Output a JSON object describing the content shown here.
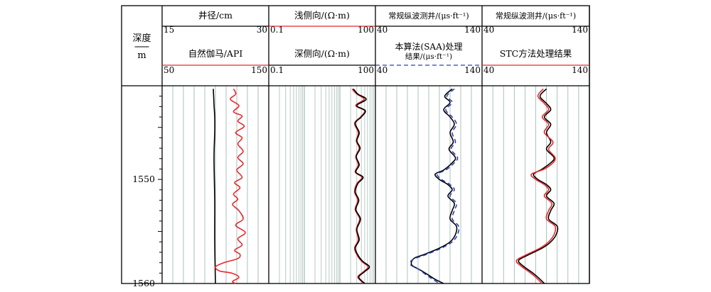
{
  "chart_data": {
    "type": "line",
    "depth_track": {
      "title": "深度",
      "unit": "m",
      "ylim": [
        1541,
        1560
      ],
      "ticks": [
        1550,
        1560
      ],
      "tick_labels": [
        "1550",
        "1560"
      ]
    },
    "tracks": [
      {
        "curves": [
          {
            "name": "井径/cm",
            "scale_min": "15",
            "scale_max": "30",
            "xlim": [
              15,
              30
            ],
            "color": "#000000",
            "dash": "none",
            "points": [
              [
                22.2,
                1541.3
              ],
              [
                22.3,
                1542.8
              ],
              [
                22.4,
                1544.0
              ],
              [
                22.4,
                1545.5
              ],
              [
                22.3,
                1548.0
              ],
              [
                22.4,
                1552.0
              ],
              [
                22.4,
                1556.0
              ],
              [
                22.5,
                1560.0
              ]
            ]
          },
          {
            "name": "自然伽马/API",
            "scale_min": "50",
            "scale_max": "150",
            "xlim": [
              50,
              150
            ],
            "color": "#e8282c",
            "dash": "none",
            "points": [
              [
                117,
                1541.3
              ],
              [
                119,
                1541.8
              ],
              [
                114,
                1542.3
              ],
              [
                122,
                1542.9
              ],
              [
                117,
                1543.5
              ],
              [
                125,
                1543.9
              ],
              [
                121,
                1544.4
              ],
              [
                127,
                1544.9
              ],
              [
                119,
                1545.5
              ],
              [
                125,
                1546.0
              ],
              [
                121,
                1546.6
              ],
              [
                126,
                1547.3
              ],
              [
                121,
                1547.9
              ],
              [
                126,
                1548.5
              ],
              [
                120,
                1549.1
              ],
              [
                125,
                1549.8
              ],
              [
                118,
                1550.3
              ],
              [
                123,
                1550.8
              ],
              [
                117,
                1551.4
              ],
              [
                121,
                1551.9
              ],
              [
                116,
                1552.4
              ],
              [
                122,
                1553.0
              ],
              [
                126,
                1553.8
              ],
              [
                119,
                1554.4
              ],
              [
                128,
                1555.1
              ],
              [
                121,
                1555.7
              ],
              [
                125,
                1556.3
              ],
              [
                118,
                1556.8
              ],
              [
                123,
                1557.2
              ],
              [
                121,
                1557.6
              ],
              [
                108,
                1558.0
              ],
              [
                100,
                1558.4
              ],
              [
                104,
                1558.8
              ],
              [
                115,
                1559.0
              ],
              [
                122,
                1559.4
              ],
              [
                116,
                1559.8
              ],
              [
                119,
                1560.0
              ]
            ]
          }
        ]
      },
      {
        "curves": [
          {
            "name": "浅侧向/(Ω·m)",
            "scale_min": "0.1",
            "scale_max": "100",
            "xlim": [
              0.1,
              100
            ],
            "log": true,
            "color": "#e8282c",
            "dash": "none",
            "points": [
              [
                22,
                1541.3
              ],
              [
                30,
                1541.8
              ],
              [
                48,
                1542.3
              ],
              [
                28,
                1542.9
              ],
              [
                50,
                1543.4
              ],
              [
                38,
                1544.0
              ],
              [
                26,
                1544.6
              ],
              [
                33,
                1545.5
              ],
              [
                29,
                1546.3
              ],
              [
                35,
                1547.0
              ],
              [
                28,
                1547.8
              ],
              [
                33,
                1548.6
              ],
              [
                27,
                1549.3
              ],
              [
                42,
                1549.8
              ],
              [
                30,
                1550.4
              ],
              [
                26,
                1551.2
              ],
              [
                32,
                1552.0
              ],
              [
                27,
                1552.9
              ],
              [
                36,
                1553.8
              ],
              [
                29,
                1554.8
              ],
              [
                33,
                1555.8
              ],
              [
                26,
                1556.6
              ],
              [
                32,
                1557.4
              ],
              [
                42,
                1557.9
              ],
              [
                62,
                1558.4
              ],
              [
                45,
                1558.9
              ],
              [
                32,
                1559.4
              ],
              [
                48,
                1560.0
              ]
            ]
          },
          {
            "name": "深侧向/(Ω·m)",
            "scale_min": "0.1",
            "scale_max": "100",
            "xlim": [
              0.1,
              100
            ],
            "log": true,
            "color": "#000000",
            "dash": "none",
            "points": [
              [
                24,
                1541.3
              ],
              [
                32,
                1541.8
              ],
              [
                55,
                1542.3
              ],
              [
                30,
                1542.9
              ],
              [
                52,
                1543.4
              ],
              [
                40,
                1544.0
              ],
              [
                27,
                1544.6
              ],
              [
                35,
                1545.5
              ],
              [
                30,
                1546.3
              ],
              [
                37,
                1547.0
              ],
              [
                29,
                1547.8
              ],
              [
                35,
                1548.6
              ],
              [
                28,
                1549.3
              ],
              [
                45,
                1549.8
              ],
              [
                32,
                1550.4
              ],
              [
                27,
                1551.2
              ],
              [
                34,
                1552.0
              ],
              [
                28,
                1552.9
              ],
              [
                38,
                1553.8
              ],
              [
                30,
                1554.8
              ],
              [
                35,
                1555.8
              ],
              [
                27,
                1556.6
              ],
              [
                34,
                1557.4
              ],
              [
                45,
                1557.9
              ],
              [
                68,
                1558.4
              ],
              [
                48,
                1558.9
              ],
              [
                34,
                1559.4
              ],
              [
                50,
                1560.0
              ]
            ]
          }
        ]
      },
      {
        "curves": [
          {
            "name": "常规纵波测井/(μs·ft⁻¹)",
            "scale_min": "40",
            "scale_max": "140",
            "xlim": [
              40,
              140
            ],
            "color": "#000000",
            "dash": "none",
            "points": [
              [
                112,
                1541.3
              ],
              [
                105,
                1542.0
              ],
              [
                110,
                1542.6
              ],
              [
                104,
                1543.3
              ],
              [
                110,
                1544.0
              ],
              [
                114,
                1544.7
              ],
              [
                110,
                1545.5
              ],
              [
                113,
                1546.4
              ],
              [
                109,
                1547.1
              ],
              [
                115,
                1547.9
              ],
              [
                112,
                1548.4
              ],
              [
                104,
                1549.1
              ],
              [
                96,
                1549.5
              ],
              [
                100,
                1550.0
              ],
              [
                108,
                1550.5
              ],
              [
                112,
                1551.0
              ],
              [
                108,
                1551.6
              ],
              [
                114,
                1552.3
              ],
              [
                112,
                1553.0
              ],
              [
                110,
                1553.8
              ],
              [
                116,
                1554.5
              ],
              [
                115,
                1555.3
              ],
              [
                110,
                1556.0
              ],
              [
                100,
                1556.6
              ],
              [
                86,
                1557.2
              ],
              [
                76,
                1557.6
              ],
              [
                74,
                1558.2
              ],
              [
                82,
                1558.7
              ],
              [
                90,
                1559.2
              ],
              [
                96,
                1559.6
              ],
              [
                104,
                1560.0
              ]
            ]
          },
          {
            "name": "本算法(SAA)处理结果/(μs·ft⁻¹)",
            "scale_min": "40",
            "scale_max": "140",
            "xlim": [
              40,
              140
            ],
            "color": "#2a3fb8",
            "dash": "6,4",
            "points": [
              [
                114,
                1541.3
              ],
              [
                107,
                1542.0
              ],
              [
                112,
                1542.6
              ],
              [
                106,
                1543.3
              ],
              [
                112,
                1544.0
              ],
              [
                116,
                1544.7
              ],
              [
                112,
                1545.5
              ],
              [
                115,
                1546.4
              ],
              [
                111,
                1547.1
              ],
              [
                117,
                1547.9
              ],
              [
                114,
                1548.4
              ],
              [
                106,
                1549.1
              ],
              [
                98,
                1549.5
              ],
              [
                102,
                1550.0
              ],
              [
                110,
                1550.5
              ],
              [
                114,
                1551.0
              ],
              [
                110,
                1551.6
              ],
              [
                116,
                1552.3
              ],
              [
                114,
                1553.0
              ],
              [
                112,
                1553.8
              ],
              [
                118,
                1554.5
              ],
              [
                117,
                1555.3
              ],
              [
                112,
                1556.0
              ],
              [
                102,
                1556.6
              ],
              [
                88,
                1557.2
              ],
              [
                75,
                1557.7
              ],
              [
                73,
                1558.2
              ],
              [
                80,
                1558.6
              ],
              [
                88,
                1559.2
              ],
              [
                94,
                1559.6
              ],
              [
                100,
                1560.0
              ]
            ]
          }
        ]
      },
      {
        "curves": [
          {
            "name": "常规纵波测井/(μs·ft⁻¹)",
            "scale_min": "40",
            "scale_max": "140",
            "xlim": [
              40,
              140
            ],
            "color": "#000000",
            "dash": "none",
            "points": [
              [
                100,
                1541.3
              ],
              [
                94,
                1542.0
              ],
              [
                100,
                1542.7
              ],
              [
                104,
                1543.3
              ],
              [
                98,
                1544.0
              ],
              [
                104,
                1544.7
              ],
              [
                100,
                1545.5
              ],
              [
                104,
                1546.4
              ],
              [
                100,
                1547.1
              ],
              [
                107,
                1547.9
              ],
              [
                104,
                1548.4
              ],
              [
                96,
                1549.0
              ],
              [
                88,
                1549.5
              ],
              [
                92,
                1550.0
              ],
              [
                100,
                1550.5
              ],
              [
                104,
                1551.0
              ],
              [
                100,
                1551.6
              ],
              [
                107,
                1552.3
              ],
              [
                104,
                1553.0
              ],
              [
                102,
                1553.8
              ],
              [
                110,
                1554.5
              ],
              [
                109,
                1555.3
              ],
              [
                104,
                1556.0
              ],
              [
                96,
                1556.6
              ],
              [
                82,
                1557.3
              ],
              [
                74,
                1557.8
              ],
              [
                78,
                1558.3
              ],
              [
                86,
                1558.9
              ],
              [
                92,
                1559.4
              ],
              [
                98,
                1560.0
              ]
            ]
          },
          {
            "name": "STC方法处理结果",
            "scale_min": "40",
            "scale_max": "140",
            "xlim": [
              40,
              140
            ],
            "color": "#e8282c",
            "dash": "none",
            "points": [
              [
                97,
                1541.3
              ],
              [
                92,
                1542.0
              ],
              [
                98,
                1542.7
              ],
              [
                102,
                1543.3
              ],
              [
                96,
                1544.0
              ],
              [
                102,
                1544.7
              ],
              [
                98,
                1545.5
              ],
              [
                106,
                1546.4
              ],
              [
                102,
                1547.1
              ],
              [
                108,
                1547.9
              ],
              [
                106,
                1548.4
              ],
              [
                98,
                1549.0
              ],
              [
                86,
                1549.5
              ],
              [
                90,
                1550.0
              ],
              [
                98,
                1550.5
              ],
              [
                102,
                1551.0
              ],
              [
                98,
                1551.6
              ],
              [
                105,
                1552.3
              ],
              [
                102,
                1553.0
              ],
              [
                100,
                1553.8
              ],
              [
                108,
                1554.5
              ],
              [
                107,
                1555.3
              ],
              [
                102,
                1556.0
              ],
              [
                94,
                1556.6
              ],
              [
                80,
                1557.3
              ],
              [
                72,
                1557.8
              ],
              [
                76,
                1558.3
              ],
              [
                84,
                1558.9
              ],
              [
                90,
                1559.4
              ],
              [
                96,
                1560.0
              ]
            ]
          }
        ]
      }
    ]
  }
}
